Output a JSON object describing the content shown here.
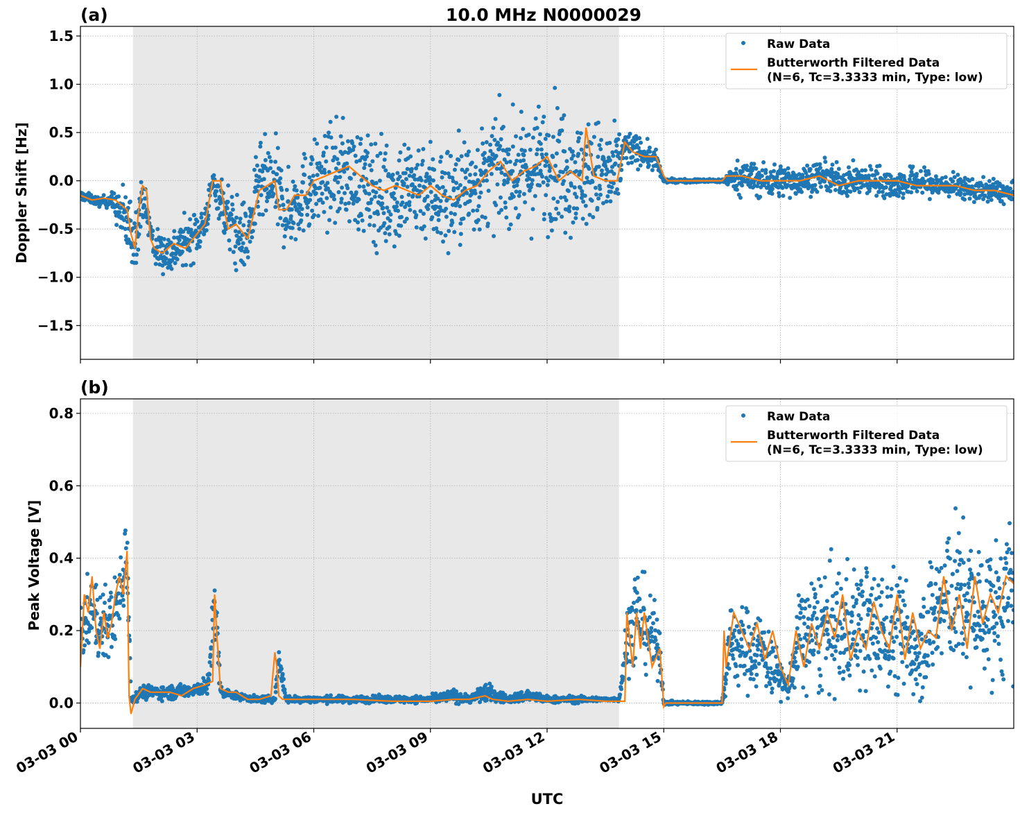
{
  "figure": {
    "title": "10.0 MHz N0000029",
    "xlabel": "UTC"
  },
  "colors": {
    "raw": "#1f77b4",
    "filtered": "#ff7f0e",
    "shade": "#e8e8e8",
    "grid": "#b0b0b0"
  },
  "chart_data": [
    {
      "type": "scatter",
      "panel_label": "(a)",
      "title": "10.0 MHz N0000029",
      "xlabel": "",
      "ylabel": "Doppler Shift [Hz]",
      "xlim": [
        0,
        24
      ],
      "ylim": [
        -1.85,
        1.6
      ],
      "yticks": [
        -1.5,
        -1.0,
        -0.5,
        0.0,
        0.5,
        1.0,
        1.5
      ],
      "ytick_labels": [
        "−1.5",
        "−1.0",
        "−0.5",
        "0.0",
        "0.5",
        "1.0",
        "1.5"
      ],
      "grid": true,
      "shaded_region": [
        1.35,
        13.85
      ],
      "legend": {
        "placement": "top-right",
        "entries": [
          "Raw Data",
          "Butterworth Filtered Data",
          "(N=6, Tc=3.3333 min, Type: low)"
        ]
      },
      "series": [
        {
          "name": "Raw Data",
          "kind": "points",
          "x": [
            0.0,
            0.5,
            0.8,
            1.2,
            1.4,
            1.6,
            1.9,
            2.3,
            2.8,
            3.2,
            3.4,
            3.7,
            4.0,
            4.3,
            4.6,
            5.0,
            5.3,
            5.8,
            6.3,
            6.8,
            7.3,
            7.8,
            8.3,
            8.8,
            9.3,
            9.8,
            10.3,
            10.8,
            11.3,
            11.8,
            12.3,
            12.8,
            13.3,
            13.7,
            14.0,
            14.4,
            14.8,
            15.0,
            15.5,
            16.0,
            16.5,
            17.0,
            17.5,
            18.0,
            18.5,
            19.0,
            19.5,
            20.0,
            20.5,
            21.0,
            21.5,
            22.0,
            22.5,
            23.0,
            23.5,
            24.0
          ],
          "y": [
            -0.15,
            -0.22,
            -0.2,
            -0.45,
            -0.6,
            -0.15,
            -0.7,
            -0.75,
            -0.6,
            -0.45,
            0.0,
            -0.3,
            -0.55,
            -0.6,
            -0.05,
            -0.05,
            -0.35,
            -0.1,
            0.0,
            0.1,
            -0.05,
            -0.15,
            -0.1,
            -0.05,
            -0.2,
            -0.1,
            0.0,
            0.15,
            0.05,
            0.15,
            0.2,
            0.05,
            0.1,
            0.0,
            0.35,
            0.3,
            0.2,
            0.0,
            0.0,
            0.0,
            0.0,
            0.05,
            0.0,
            0.0,
            0.0,
            0.05,
            0.0,
            0.0,
            0.0,
            -0.05,
            0.0,
            -0.05,
            -0.05,
            -0.1,
            -0.1,
            -0.15
          ],
          "spread": [
            0.05,
            0.05,
            0.08,
            0.4,
            0.35,
            0.2,
            0.2,
            0.25,
            0.25,
            0.25,
            0.1,
            0.35,
            0.4,
            0.35,
            0.45,
            0.5,
            0.4,
            0.45,
            0.5,
            0.55,
            0.55,
            0.6,
            0.6,
            0.55,
            0.6,
            0.6,
            0.55,
            0.55,
            0.55,
            0.65,
            0.7,
            0.6,
            0.55,
            0.55,
            0.2,
            0.15,
            0.12,
            0.02,
            0.02,
            0.02,
            0.02,
            0.2,
            0.18,
            0.18,
            0.16,
            0.16,
            0.16,
            0.16,
            0.16,
            0.16,
            0.16,
            0.14,
            0.12,
            0.12,
            0.12,
            0.12
          ]
        },
        {
          "name": "Butterworth Filtered Data",
          "kind": "line",
          "x": [
            0.0,
            0.3,
            0.6,
            0.9,
            1.2,
            1.3,
            1.4,
            1.5,
            1.6,
            1.7,
            1.8,
            1.9,
            2.1,
            2.4,
            2.7,
            3.0,
            3.2,
            3.4,
            3.6,
            3.7,
            3.8,
            4.0,
            4.3,
            4.6,
            4.8,
            5.0,
            5.1,
            5.3,
            5.5,
            5.8,
            6.0,
            6.3,
            6.6,
            6.9,
            7.2,
            7.5,
            7.8,
            8.1,
            8.4,
            8.7,
            9.0,
            9.3,
            9.6,
            9.9,
            10.2,
            10.5,
            10.8,
            11.1,
            11.4,
            11.7,
            12.0,
            12.3,
            12.6,
            12.9,
            13.0,
            13.2,
            13.5,
            13.8,
            14.0,
            14.2,
            14.5,
            14.8,
            15.0,
            15.1,
            15.5,
            16.0,
            16.5,
            16.6,
            17.0,
            17.5,
            18.0,
            18.5,
            19.0,
            19.5,
            20.0,
            20.5,
            21.0,
            21.5,
            22.0,
            22.5,
            23.0,
            23.5,
            24.0
          ],
          "y": [
            -0.15,
            -0.2,
            -0.18,
            -0.2,
            -0.3,
            -0.55,
            -0.7,
            -0.3,
            -0.05,
            -0.1,
            -0.6,
            -0.7,
            -0.75,
            -0.65,
            -0.7,
            -0.55,
            -0.45,
            0.0,
            0.0,
            -0.3,
            -0.5,
            -0.45,
            -0.6,
            -0.1,
            -0.05,
            0.0,
            -0.3,
            -0.3,
            -0.15,
            -0.15,
            0.0,
            0.05,
            0.1,
            0.15,
            0.05,
            -0.05,
            -0.1,
            -0.05,
            -0.1,
            -0.15,
            -0.05,
            -0.15,
            -0.2,
            -0.1,
            -0.05,
            0.1,
            0.2,
            0.0,
            0.1,
            0.15,
            0.25,
            0.0,
            0.1,
            0.0,
            0.55,
            0.05,
            0.0,
            0.0,
            0.4,
            0.3,
            0.25,
            0.25,
            0.05,
            0.0,
            0.0,
            0.0,
            0.0,
            0.05,
            0.05,
            0.0,
            0.0,
            0.0,
            0.05,
            -0.05,
            0.0,
            0.0,
            0.0,
            -0.05,
            -0.05,
            -0.05,
            -0.1,
            -0.1,
            -0.15
          ]
        }
      ]
    },
    {
      "type": "scatter",
      "panel_label": "(b)",
      "title": "",
      "xlabel": "UTC",
      "ylabel": "Peak Voltage [V]",
      "xlim": [
        0,
        24
      ],
      "ylim": [
        -0.07,
        0.84
      ],
      "yticks": [
        0.0,
        0.2,
        0.4,
        0.6,
        0.8
      ],
      "ytick_labels": [
        "0.0",
        "0.2",
        "0.4",
        "0.6",
        "0.8"
      ],
      "xticks": [
        0,
        3,
        6,
        9,
        12,
        15,
        18,
        21
      ],
      "xtick_labels": [
        "03-03 00",
        "03-03 03",
        "03-03 06",
        "03-03 09",
        "03-03 12",
        "03-03 15",
        "03-03 18",
        "03-03 21"
      ],
      "grid": true,
      "shaded_region": [
        1.35,
        13.85
      ],
      "legend": {
        "placement": "top-right",
        "entries": [
          "Raw Data",
          "Butterworth Filtered Data",
          "(N=6, Tc=3.3333 min, Type: low)"
        ]
      },
      "series": [
        {
          "name": "Raw Data",
          "kind": "points",
          "x": [
            0.0,
            0.3,
            0.6,
            0.9,
            1.1,
            1.2,
            1.3,
            1.6,
            2.0,
            2.5,
            3.0,
            3.3,
            3.45,
            3.6,
            4.0,
            4.5,
            5.0,
            5.1,
            5.3,
            6.0,
            7.0,
            8.0,
            9.0,
            9.6,
            10.0,
            10.4,
            11.0,
            11.5,
            12.0,
            12.8,
            13.5,
            13.85,
            14.1,
            14.3,
            14.6,
            14.9,
            15.0,
            16.0,
            16.5,
            16.7,
            17.0,
            17.5,
            17.8,
            18.2,
            18.5,
            19.0,
            19.5,
            20.0,
            20.5,
            21.0,
            21.5,
            22.0,
            22.3,
            22.6,
            23.0,
            23.5,
            24.0
          ],
          "y": [
            0.2,
            0.25,
            0.2,
            0.25,
            0.35,
            0.45,
            0.01,
            0.03,
            0.03,
            0.03,
            0.04,
            0.05,
            0.3,
            0.03,
            0.02,
            0.01,
            0.01,
            0.12,
            0.01,
            0.01,
            0.01,
            0.01,
            0.01,
            0.02,
            0.01,
            0.03,
            0.01,
            0.02,
            0.01,
            0.01,
            0.01,
            0.01,
            0.2,
            0.25,
            0.2,
            0.15,
            0.0,
            0.0,
            0.0,
            0.17,
            0.15,
            0.15,
            0.1,
            0.04,
            0.18,
            0.2,
            0.2,
            0.22,
            0.2,
            0.2,
            0.15,
            0.25,
            0.3,
            0.3,
            0.25,
            0.25,
            0.3
          ],
          "spread": [
            0.08,
            0.1,
            0.12,
            0.1,
            0.12,
            0.15,
            0.01,
            0.02,
            0.02,
            0.02,
            0.02,
            0.03,
            0.15,
            0.02,
            0.01,
            0.01,
            0.01,
            0.06,
            0.01,
            0.01,
            0.01,
            0.01,
            0.01,
            0.02,
            0.01,
            0.03,
            0.01,
            0.02,
            0.01,
            0.01,
            0.005,
            0.005,
            0.12,
            0.15,
            0.12,
            0.08,
            0.005,
            0.005,
            0.005,
            0.12,
            0.12,
            0.12,
            0.08,
            0.03,
            0.15,
            0.18,
            0.18,
            0.18,
            0.17,
            0.18,
            0.15,
            0.2,
            0.22,
            0.22,
            0.2,
            0.2,
            0.22
          ]
        },
        {
          "name": "Butterworth Filtered Data",
          "kind": "line",
          "x": [
            0.0,
            0.1,
            0.2,
            0.3,
            0.4,
            0.5,
            0.6,
            0.7,
            0.8,
            0.9,
            1.0,
            1.1,
            1.2,
            1.25,
            1.3,
            1.4,
            1.6,
            1.8,
            2.0,
            2.3,
            2.6,
            2.9,
            3.2,
            3.4,
            3.45,
            3.5,
            3.6,
            3.8,
            4.0,
            4.3,
            4.6,
            4.9,
            5.0,
            5.05,
            5.1,
            5.2,
            5.4,
            6.0,
            7.0,
            8.0,
            9.0,
            9.6,
            10.0,
            10.4,
            10.6,
            11.0,
            11.5,
            12.0,
            12.8,
            13.5,
            13.85,
            14.0,
            14.05,
            14.1,
            14.2,
            14.3,
            14.4,
            14.5,
            14.7,
            14.9,
            15.0,
            15.05,
            16.0,
            16.5,
            16.55,
            16.6,
            16.8,
            17.0,
            17.2,
            17.4,
            17.6,
            17.8,
            18.0,
            18.2,
            18.4,
            18.6,
            18.8,
            19.0,
            19.2,
            19.4,
            19.6,
            19.8,
            20.0,
            20.2,
            20.4,
            20.6,
            20.8,
            21.0,
            21.2,
            21.4,
            21.6,
            21.8,
            22.0,
            22.2,
            22.4,
            22.6,
            22.8,
            23.0,
            23.2,
            23.4,
            23.6,
            23.8,
            24.0
          ],
          "y": [
            0.1,
            0.3,
            0.25,
            0.35,
            0.2,
            0.15,
            0.25,
            0.18,
            0.22,
            0.3,
            0.35,
            0.3,
            0.42,
            0.02,
            -0.03,
            0.01,
            0.04,
            0.03,
            0.03,
            0.03,
            0.02,
            0.04,
            0.05,
            0.06,
            0.3,
            0.2,
            0.04,
            0.03,
            0.03,
            0.01,
            0.01,
            0.02,
            0.14,
            0.1,
            0.02,
            0.01,
            0.01,
            0.01,
            0.01,
            0.005,
            0.005,
            0.01,
            0.01,
            0.02,
            0.01,
            0.005,
            0.01,
            0.005,
            0.01,
            0.005,
            0.005,
            0.005,
            0.25,
            0.2,
            0.1,
            0.25,
            0.15,
            0.25,
            0.1,
            0.15,
            -0.01,
            0.0,
            0.0,
            0.0,
            0.2,
            0.1,
            0.25,
            0.2,
            0.15,
            0.22,
            0.12,
            0.2,
            0.1,
            0.05,
            0.2,
            0.1,
            0.22,
            0.15,
            0.25,
            0.18,
            0.3,
            0.12,
            0.2,
            0.15,
            0.28,
            0.2,
            0.15,
            0.3,
            0.12,
            0.25,
            0.15,
            0.2,
            0.18,
            0.35,
            0.2,
            0.3,
            0.15,
            0.35,
            0.22,
            0.3,
            0.25,
            0.35,
            0.33
          ]
        }
      ]
    }
  ]
}
